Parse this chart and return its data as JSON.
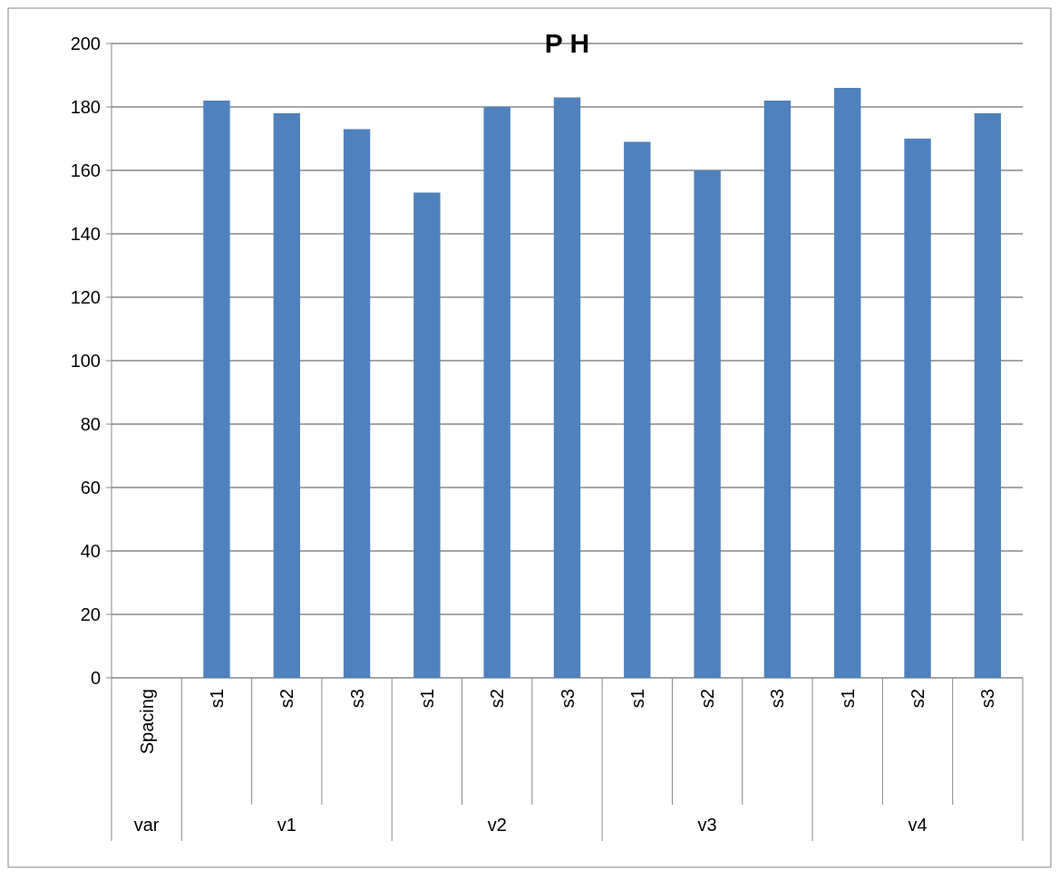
{
  "chart_data": {
    "type": "bar",
    "title": "P H",
    "categories": [
      "Spacing",
      "s1",
      "s2",
      "s3",
      "s1",
      "s2",
      "s3",
      "s1",
      "s2",
      "s3",
      "s1",
      "s2",
      "s3"
    ],
    "values": [
      null,
      182,
      178,
      173,
      153,
      180,
      183,
      169,
      160,
      182,
      186,
      170,
      178
    ],
    "color": "#4f81bd",
    "ylim": [
      0,
      200
    ],
    "yticks": [
      0,
      20,
      40,
      60,
      80,
      100,
      120,
      140,
      160,
      180,
      200
    ],
    "grid": "y",
    "annotations": [
      "var",
      "v1",
      "v2",
      "v3",
      "v4"
    ]
  }
}
